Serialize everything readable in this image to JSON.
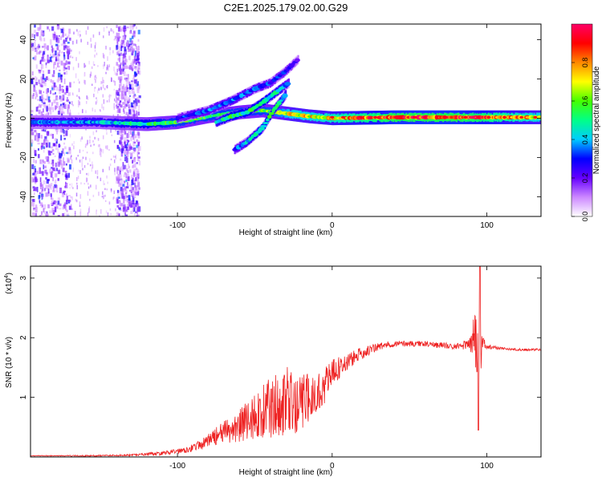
{
  "title": "C2E1.2025.179.02.00.G29",
  "chart_data": [
    {
      "type": "heatmap",
      "xlabel": "Height of straight line (km)",
      "ylabel": "Frequency (Hz)",
      "xlim": [
        -195,
        135
      ],
      "ylim": [
        -50,
        48
      ],
      "xticks": [
        -100,
        0,
        100
      ],
      "xtick_labels": [
        "-100",
        "0",
        "100"
      ],
      "yticks": [
        -40,
        -20,
        0,
        20,
        40
      ],
      "ytick_labels": [
        "-40",
        "-20",
        "0",
        "20",
        "40"
      ],
      "colorbar": {
        "label": "Normalized spectral amplitude",
        "range": [
          0,
          1
        ],
        "ticks": [
          0.0,
          0.2,
          0.4,
          0.6,
          0.8
        ],
        "tick_labels": [
          "0.0",
          "0.2",
          "0.4",
          "0.6",
          "0.8"
        ],
        "colors": [
          "#ffffff",
          "#cc88ff",
          "#6600ff",
          "#0000ff",
          "#00ccff",
          "#00ff88",
          "#44ff00",
          "#ffff00",
          "#ff8800",
          "#ff0000",
          "#ff0066"
        ]
      },
      "traces": [
        {
          "name": "main",
          "x": [
            -195,
            -150,
            -120,
            -100,
            -80,
            -60,
            -45,
            -35,
            -25,
            -15,
            0,
            40,
            80,
            100,
            135
          ],
          "y": [
            -2,
            -2,
            -3,
            -2,
            1,
            3,
            4,
            3,
            2,
            1,
            0,
            0.5,
            0.5,
            0.5,
            0.5
          ],
          "level": [
            0.35,
            0.4,
            0.5,
            0.55,
            0.55,
            0.55,
            0.55,
            0.6,
            0.7,
            0.7,
            0.75,
            0.9,
            0.9,
            0.85,
            0.7
          ]
        },
        {
          "name": "upper-arc",
          "x": [
            -100,
            -80,
            -65,
            -50,
            -40,
            -30,
            -22
          ],
          "y": [
            0,
            4,
            9,
            15,
            18,
            24,
            30
          ],
          "level": [
            0.3,
            0.35,
            0.35,
            0.35,
            0.3,
            0.3,
            0.2
          ]
        },
        {
          "name": "middle-arc",
          "x": [
            -75,
            -65,
            -55,
            -45,
            -35,
            -28
          ],
          "y": [
            -2,
            1,
            3,
            8,
            14,
            18
          ],
          "level": [
            0.4,
            0.5,
            0.5,
            0.5,
            0.45,
            0.3
          ]
        },
        {
          "name": "lower-arc",
          "x": [
            -63,
            -55,
            -45,
            -38,
            -30
          ],
          "y": [
            -16,
            -12,
            -5,
            4,
            12
          ],
          "level": [
            0.3,
            0.4,
            0.5,
            0.5,
            0.4
          ]
        }
      ],
      "noise_regions": [
        [
          -195,
          -170
        ],
        [
          -140,
          -125
        ]
      ]
    },
    {
      "type": "line",
      "xlabel": "Height of straight line (km)",
      "ylabel": "SNR (10 * v/v)",
      "y_multiplier": "(x10",
      "y_multiplier_exp": "4",
      "y_multiplier_close": ")",
      "xlim": [
        -195,
        135
      ],
      "ylim": [
        0,
        3.2
      ],
      "xticks": [
        -100,
        0,
        100
      ],
      "xtick_labels": [
        "-100",
        "0",
        "100"
      ],
      "yticks": [
        1,
        2,
        3
      ],
      "ytick_labels": [
        "1",
        "2",
        "3"
      ],
      "series": [
        {
          "color": "#ee2222",
          "x": [
            -195,
            -160,
            -130,
            -110,
            -95,
            -85,
            -75,
            -65,
            -55,
            -45,
            -38,
            -32,
            -28,
            -24,
            -20,
            -15,
            -10,
            -5,
            0,
            10,
            20,
            30,
            40,
            60,
            80,
            88,
            92,
            94,
            95,
            96,
            97,
            100,
            110,
            120,
            135
          ],
          "y": [
            0.02,
            0.02,
            0.03,
            0.06,
            0.12,
            0.2,
            0.35,
            0.45,
            0.6,
            0.75,
            0.85,
            0.95,
            0.9,
            0.8,
            0.9,
            1.0,
            1.05,
            1.2,
            1.4,
            1.6,
            1.75,
            1.85,
            1.9,
            1.9,
            1.85,
            1.9,
            2.0,
            1.8,
            2.4,
            1.7,
            1.9,
            1.85,
            1.82,
            1.8,
            1.8
          ],
          "noise": [
            0.005,
            0.01,
            0.015,
            0.03,
            0.05,
            0.08,
            0.15,
            0.25,
            0.35,
            0.45,
            0.55,
            0.6,
            0.6,
            0.5,
            0.5,
            0.4,
            0.35,
            0.3,
            0.25,
            0.15,
            0.1,
            0.07,
            0.05,
            0.05,
            0.05,
            0.1,
            0.4,
            0.5,
            0.6,
            0.5,
            0.2,
            0.04,
            0.02,
            0.02,
            0.02
          ]
        }
      ]
    }
  ]
}
